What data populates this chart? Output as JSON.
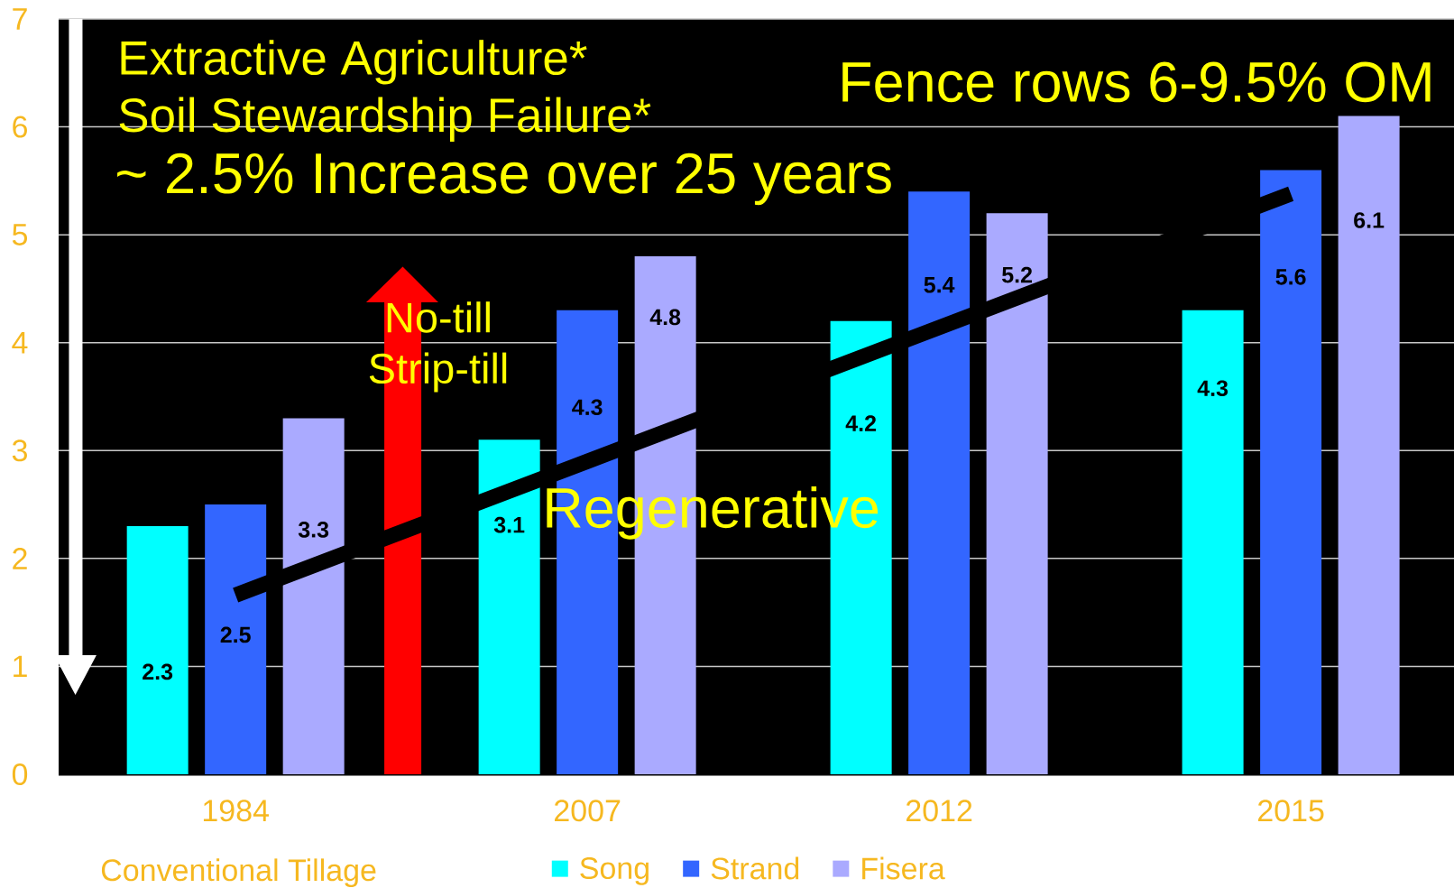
{
  "chart_data": {
    "type": "bar",
    "categories": [
      "1984",
      "2007",
      "2012",
      "2015"
    ],
    "series": [
      {
        "name": "Song",
        "color": "#00ffff",
        "values": [
          2.3,
          3.1,
          4.2,
          4.3
        ],
        "value_labels": [
          "2.3",
          "3.1",
          "4.2",
          "4.3"
        ]
      },
      {
        "name": "Strand",
        "color": "#3366ff",
        "values": [
          2.5,
          4.3,
          5.4,
          5.6
        ],
        "value_labels": [
          "2.5",
          "4.3",
          "5.4",
          "5.6"
        ]
      },
      {
        "name": "Fisera",
        "color": "#aaaaff",
        "values": [
          3.3,
          4.8,
          5.2,
          6.1
        ],
        "value_labels": [
          "3.3",
          "4.8",
          "5.2",
          "6.1"
        ]
      },
      {
        "type": "line",
        "color": "#000000",
        "values": [
          1.66,
          2.9,
          4.14,
          5.38
        ]
      }
    ],
    "ylim": [
      0,
      7
    ],
    "yticks": [
      0,
      1,
      2,
      3,
      4,
      5,
      6,
      7
    ],
    "grid": "y",
    "legend": "bottom",
    "annotations": [
      "Extractive Agriculture*",
      "Soil Stewardship Failure*",
      "~ 2.5% Increase over 25 years",
      "Fence rows 6-9.5% OM",
      "No-till Strip-till",
      "Regenerative",
      "Conventional Tillage"
    ]
  }
}
